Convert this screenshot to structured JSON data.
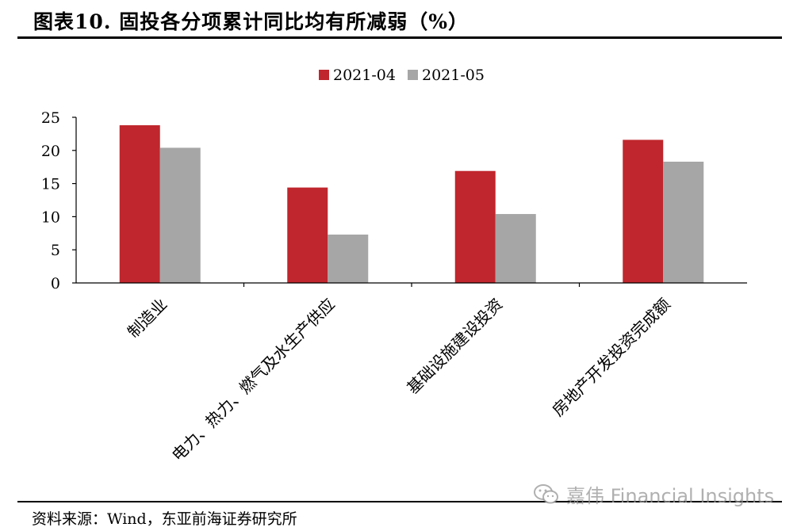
{
  "header": {
    "title": "图表10. 固投各分项累计同比均有所减弱（%）"
  },
  "footer": {
    "source": "资料来源：Wind，东亚前海证券研究所",
    "watermark": "嘉伟 Financial Insights",
    "watermark_icon": "wechat-icon"
  },
  "colors": {
    "series1": "#C0262D",
    "series2": "#A6A6A6"
  },
  "chart_data": {
    "type": "bar",
    "title": "图表10. 固投各分项累计同比均有所减弱（%）",
    "categories": [
      "制造业",
      "电力、热力、燃气及水生产供应",
      "基础设施建设投资",
      "房地产开发投资完成额"
    ],
    "series": [
      {
        "name": "2021-04",
        "values": [
          23.8,
          14.4,
          16.9,
          21.6
        ]
      },
      {
        "name": "2021-05",
        "values": [
          20.4,
          7.3,
          10.4,
          18.3
        ]
      }
    ],
    "ylim": [
      0,
      25
    ],
    "yticks": [
      0,
      5,
      10,
      15,
      20,
      25
    ],
    "legend": "top-center",
    "grid": false
  }
}
